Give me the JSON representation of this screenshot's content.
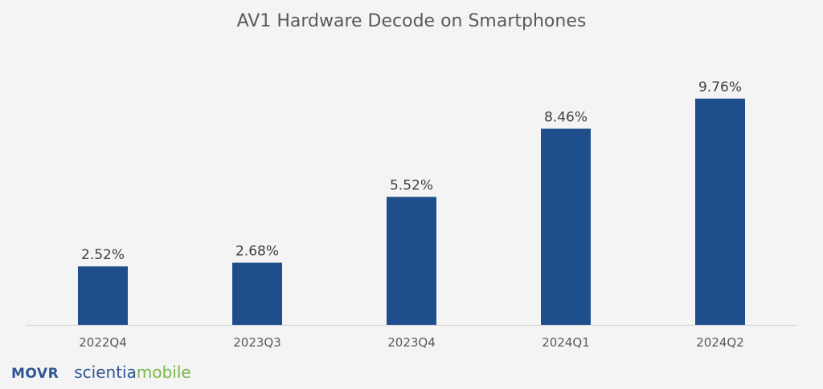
{
  "chart_data": {
    "type": "bar",
    "title": "AV1 Hardware Decode on Smartphones",
    "categories": [
      "2022Q4",
      "2023Q3",
      "2023Q4",
      "2024Q1",
      "2024Q2"
    ],
    "values": [
      2.52,
      2.68,
      5.52,
      8.46,
      9.76
    ],
    "value_labels": [
      "2.52%",
      "2.68%",
      "5.52%",
      "8.46%",
      "9.76%"
    ],
    "unit": "%",
    "ylim": [
      0,
      12
    ],
    "grid": false,
    "bar_color": "#1f4e8c",
    "xlabel": "",
    "ylabel": ""
  },
  "footer": {
    "movr": "MOVR",
    "brand_part1": "scientia",
    "brand_part2": "mobile"
  },
  "colors": {
    "background": "#f4f4f4",
    "text": "#595959",
    "axis": "#d0d0d0",
    "movr": "#2f5597",
    "brand_green": "#7ab648"
  }
}
